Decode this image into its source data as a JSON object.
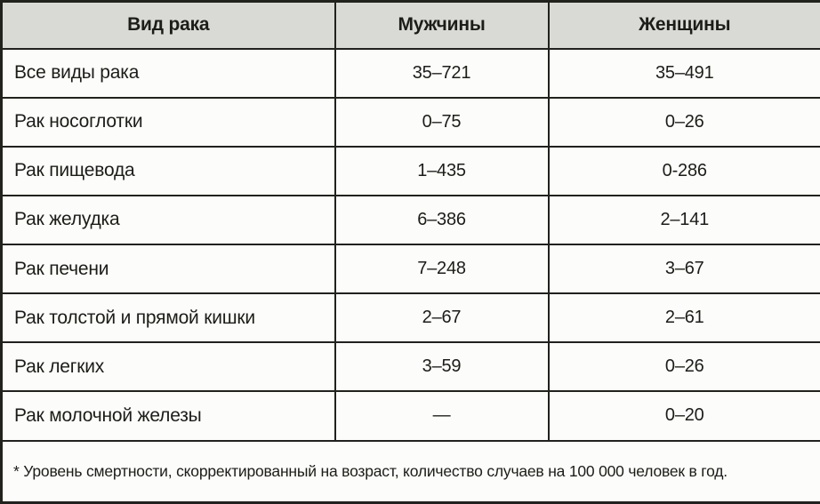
{
  "chart_data": {
    "type": "table",
    "columns": [
      "Вид рака",
      "Мужчины",
      "Женщины"
    ],
    "rows": [
      [
        "Все виды рака",
        "35–721",
        "35–491"
      ],
      [
        "Рак носоглотки",
        "0–75",
        "0–26"
      ],
      [
        "Рак пищевода",
        "1–435",
        "0-286"
      ],
      [
        "Рак желудка",
        "6–386",
        "2–141"
      ],
      [
        "Рак печени",
        "7–248",
        "3–67"
      ],
      [
        "Рак толстой и прямой кишки",
        "2–67",
        "2–61"
      ],
      [
        "Рак легких",
        "3–59",
        "0–26"
      ],
      [
        "Рак молочной железы",
        "—",
        "0–20"
      ]
    ],
    "footnote": "* Уровень смертности, скорректированный на возраст, количество случаев на 100 000 человек в год.",
    "layout": {
      "header_background": "#d9d9d5",
      "cell_background": "#fcfcfa",
      "border_color": "#21211d",
      "grid": "on"
    }
  }
}
